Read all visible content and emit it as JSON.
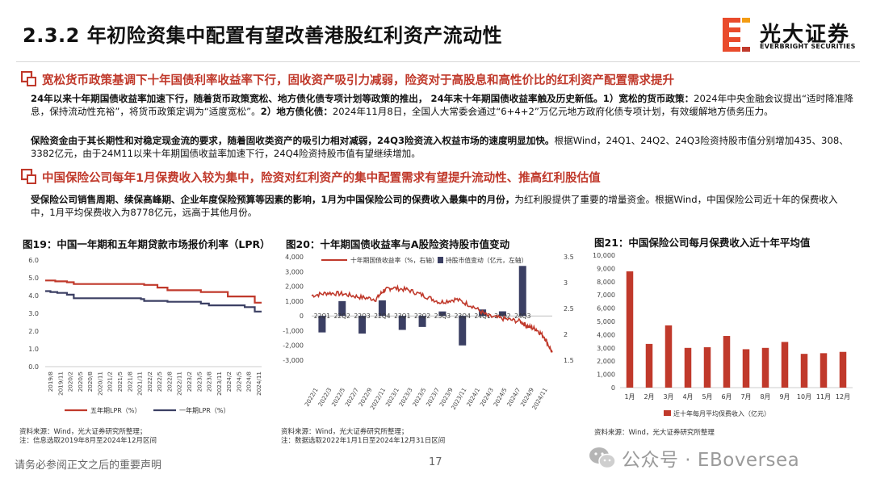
{
  "header": {
    "title": "2.3.2 年初险资集中配置有望改善港股红利资产流动性",
    "logo_cn": "光大证券",
    "logo_en": "EVERBRIGHT SECURITIES"
  },
  "section1": {
    "title": "宽松货币政策基调下十年国债利率收益率下行，固收资产吸引力减弱，险资对于高股息和高性价比的红利资产配置需求提升",
    "p1_bold": "24年以来十年期国债收益率加速下行，随着货币政策宽松、地方债化债专项计划等政策的推出， 24年末十年期国债收益率触及历史新低。1）宽松的货币政策：",
    "p1_text": "2024年中央金融会议提出“适时降准降息，保持流动性充裕”，将货币政策定调为“适度宽松”。",
    "p1_bold2": "2）地方债化债：",
    "p1_text2": "2024年11月8日，全国人大常委会通过“6+4+2”万亿元地方政府化债专项计划，有效缓解地方债务压力。",
    "p2_bold": "保险资金由于其长期性和对稳定现金流的要求，随着固收类资产的吸引力相对减弱，24Q3险资流入权益市场的速度明显加快。",
    "p2_text": "根据Wind，24Q1、24Q2、24Q3险资持股市值分别增加435、308、3382亿元，由于24M11以来十年期国债收益率加速下行，24Q4险资持股市值有望继续增加。"
  },
  "section2": {
    "title": "中国保险公司每年1月保费收入较为集中，险资对红利资产的集中配置需求有望提升流动性、推高红利股估值",
    "p1_bold": "受保险公司销售周期、续保高峰期、企业年度保险预算等因素的影响，1月为中国保险公司的保费收入最集中的月份，",
    "p1_text": "为红利股提供了重要的增量资金。根据Wind，中国保险公司近十年的保费收入中，1月平均保费收入为8778亿元，远高于其他月份。"
  },
  "figures": {
    "fig19_caption": "图19：中国一年期和五年期贷款市场报价利率（LPR）",
    "fig20_caption": "图20：十年期国债收益率与A股险资持股市值变动",
    "fig21_caption": "图21：中国保险公司每月保费收入近十年平均值",
    "src_left_1": "资料来源：Wind，光大证券研究所整理；",
    "src_left_2": "注：信息选取2019年8月至2024年12月区间",
    "src_mid_1": "资料来源：Wind，光大证券研究所整理；",
    "src_mid_2": "注：数据选取2022年1月1日至2024年12月31日区间",
    "src_right": "资料来源：Wind，光大证券研究所整理"
  },
  "footer": {
    "disclaimer": "请务必参阅正文之后的重要声明",
    "page": "17",
    "watermark": "公众号 · EBoversea"
  },
  "colors": {
    "accent": "#c0392b",
    "bar_red": "#c0392b",
    "lpr5": "#c0392b",
    "lpr1": "#3b3f63",
    "bar_navy": "#3b3f63"
  },
  "chart_data": [
    {
      "type": "line",
      "y_ticks": [
        "6.0",
        "5.0",
        "4.0",
        "3.0",
        "2.0",
        "1.0",
        "0.0"
      ],
      "ylim": [
        0,
        6
      ],
      "x_ticks": [
        "2019/8",
        "2019/11",
        "2020/2",
        "2020/5",
        "2020/8",
        "2020/11",
        "2021/2",
        "2021/5",
        "2021/8",
        "2021/11",
        "2022/2",
        "2022/5",
        "2022/8",
        "2022/11",
        "2023/2",
        "2023/5",
        "2023/8",
        "2023/11",
        "2024/2",
        "2024/5",
        "2024/8",
        "2024/11"
      ],
      "series": [
        {
          "name": "五年期LPR（%）",
          "x": [
            2019.58,
            2019.83,
            2020.12,
            2020.29,
            2021.96,
            2022.04,
            2022.37,
            2022.62,
            2023.45,
            2024.12,
            2024.79,
            2024.96
          ],
          "values": [
            4.85,
            4.8,
            4.75,
            4.65,
            4.65,
            4.6,
            4.45,
            4.3,
            4.2,
            3.95,
            3.6,
            3.6
          ]
        },
        {
          "name": "一年期LPR（%）",
          "x": [
            2019.58,
            2019.71,
            2019.88,
            2020.12,
            2020.29,
            2021.96,
            2022.04,
            2022.62,
            2023.45,
            2023.65,
            2024.54,
            2024.79,
            2024.96
          ],
          "values": [
            4.25,
            4.2,
            4.15,
            4.05,
            3.85,
            3.8,
            3.7,
            3.65,
            3.55,
            3.45,
            3.35,
            3.1,
            3.1
          ]
        }
      ]
    },
    {
      "type": "bar",
      "left_ticks": [
        "4,000",
        "3,000",
        "2,000",
        "1,000",
        "0",
        "-1,000",
        "-2,000",
        "-3,000"
      ],
      "left_lim": [
        -3000,
        4000
      ],
      "right_ticks": [
        "3.5",
        "3",
        "2.5",
        "2",
        "1.5"
      ],
      "right_lim": [
        1.5,
        3.5
      ],
      "x_ticks": [
        "2022/1",
        "2022/3",
        "2022/5",
        "2022/7",
        "2022/9",
        "2022/11",
        "2023/1",
        "2023/3",
        "2023/5",
        "2023/7",
        "2023/9",
        "2023/11",
        "2024/1",
        "2024/3",
        "2024/5",
        "2024/7",
        "2024/9",
        "2024/11"
      ],
      "categories": [
        "22Q1",
        "22Q2",
        "22Q3",
        "22Q4",
        "23Q1",
        "23Q2",
        "23Q3",
        "23Q4",
        "24Q1",
        "24Q2",
        "24Q3"
      ],
      "series": [
        {
          "name": "持股市值变动（亿元，左轴）",
          "values": [
            -1120,
            1000,
            -1200,
            1050,
            -950,
            -750,
            300,
            -2000,
            435,
            308,
            3382
          ]
        },
        {
          "name": "十年期国债收益率（%，右轴）",
          "x": [
            2022.0,
            2022.2,
            2022.4,
            2022.6,
            2022.8,
            2022.9,
            2023.0,
            2023.2,
            2023.4,
            2023.6,
            2023.8,
            2024.0,
            2024.2,
            2024.4,
            2024.6,
            2024.7,
            2024.8,
            2024.9,
            2025.0
          ],
          "values": [
            2.75,
            2.8,
            2.78,
            2.72,
            2.68,
            2.85,
            2.9,
            2.86,
            2.75,
            2.62,
            2.68,
            2.55,
            2.35,
            2.3,
            2.25,
            2.15,
            2.1,
            1.95,
            1.65
          ]
        }
      ]
    },
    {
      "type": "bar",
      "y_ticks": [
        "10,000",
        "9,000",
        "8,000",
        "7,000",
        "6,000",
        "5,000",
        "4,000",
        "3,000",
        "2,000",
        "1,000",
        "0"
      ],
      "ylim": [
        0,
        10000
      ],
      "categories": [
        "1月",
        "2月",
        "3月",
        "4月",
        "5月",
        "6月",
        "7月",
        "8月",
        "9月",
        "10月",
        "11月",
        "12月"
      ],
      "series": [
        {
          "name": "近十年每月平均保费收入（亿元）",
          "values": [
            8778,
            3300,
            4700,
            3000,
            3050,
            3900,
            2900,
            3000,
            3450,
            2550,
            2600,
            2700
          ]
        }
      ]
    }
  ]
}
